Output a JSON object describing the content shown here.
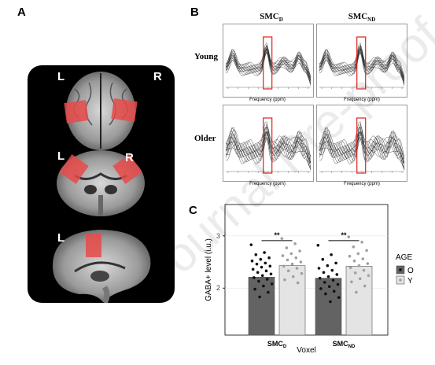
{
  "panels": {
    "a": "A",
    "b": "B",
    "c": "C"
  },
  "brain": {
    "left": "L",
    "right": "R"
  },
  "spectra": {
    "col_smcd_main": "SMC",
    "col_smcd_sub": "D",
    "col_smcnd_main": "SMC",
    "col_smcnd_sub": "ND",
    "row_young": "Young",
    "row_older": "Older",
    "freq_label": "Frequency (ppm)"
  },
  "chart_data": {
    "type": "bar",
    "categories": [
      "SMC_D",
      "SMC_ND"
    ],
    "category_labels": [
      {
        "main": "SMC",
        "sub": "D"
      },
      {
        "main": "SMC",
        "sub": "ND"
      }
    ],
    "series": [
      {
        "name": "O",
        "values": [
          2.21,
          2.19
        ],
        "color": "#636363"
      },
      {
        "name": "Y",
        "values": [
          2.43,
          2.42
        ],
        "color": "#e4e4e4"
      }
    ],
    "xlabel": "Voxel",
    "ylabel": "GABA+ level (i.u.)",
    "ylim": [
      1.1,
      3.6
    ],
    "yticks": [
      2,
      3
    ],
    "ytick_labels": [
      "2",
      "3"
    ],
    "legend": {
      "title": "AGE",
      "placement": "right",
      "labels": [
        "O",
        "Y"
      ]
    },
    "significance": [
      "**",
      "**"
    ],
    "points": {
      "SMC_D_O": [
        2.83,
        2.68,
        2.64,
        2.58,
        2.55,
        2.52,
        2.48,
        2.46,
        2.42,
        2.4,
        2.36,
        2.33,
        2.3,
        2.27,
        2.24,
        2.2,
        2.17,
        2.13,
        2.08,
        2.04,
        1.98,
        1.92,
        1.83
      ],
      "SMC_D_Y": [
        2.95,
        2.85,
        2.77,
        2.71,
        2.66,
        2.62,
        2.58,
        2.54,
        2.5,
        2.46,
        2.42,
        2.38,
        2.33,
        2.28,
        2.22,
        2.16,
        2.1
      ],
      "SMC_ND_O": [
        2.82,
        2.64,
        2.55,
        2.48,
        2.43,
        2.38,
        2.34,
        2.3,
        2.26,
        2.22,
        2.19,
        2.15,
        2.11,
        2.07,
        2.03,
        1.99,
        1.94,
        1.89,
        1.82,
        1.74
      ],
      "SMC_ND_Y": [
        2.98,
        2.88,
        2.79,
        2.72,
        2.66,
        2.61,
        2.56,
        2.52,
        2.47,
        2.43,
        2.39,
        2.34,
        2.29,
        2.24,
        2.18,
        2.12,
        2.04,
        1.92
      ]
    }
  },
  "watermark": "Journal Pre-proof"
}
